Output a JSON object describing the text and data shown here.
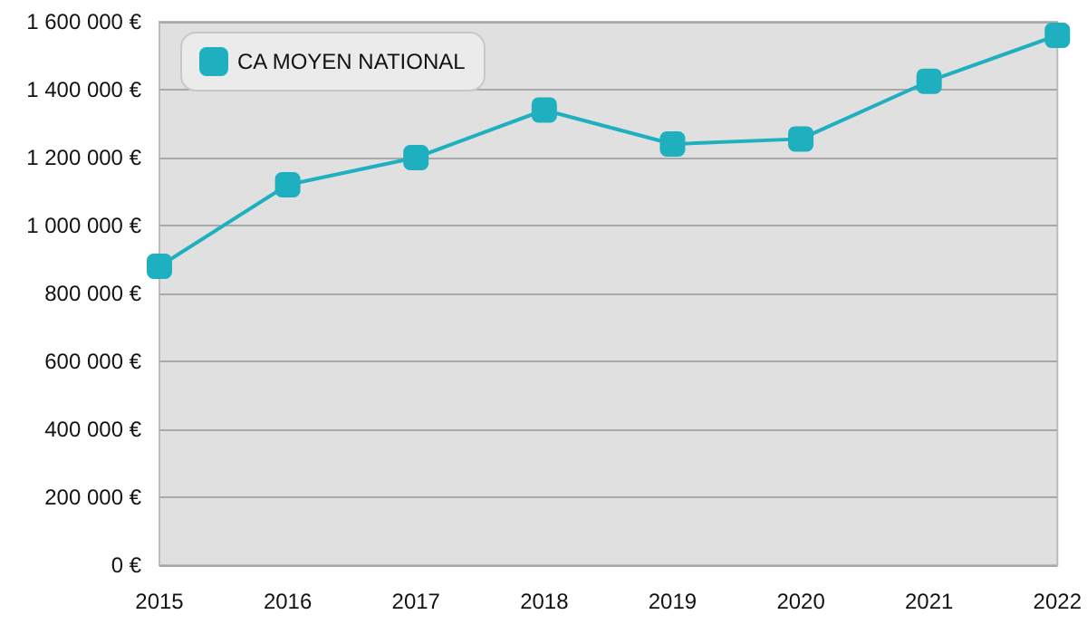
{
  "chart_data": {
    "type": "line",
    "categories": [
      "2015",
      "2016",
      "2017",
      "2018",
      "2019",
      "2020",
      "2021",
      "2022"
    ],
    "series": [
      {
        "name": "CA MOYEN NATIONAL",
        "color": "#1fb0c0",
        "values": [
          880000,
          1120000,
          1200000,
          1340000,
          1240000,
          1255000,
          1425000,
          1560000
        ]
      }
    ],
    "ylim": [
      0,
      1600000
    ],
    "yticks": [
      {
        "value": 0,
        "label": "0 €"
      },
      {
        "value": 200000,
        "label": "200 000 €"
      },
      {
        "value": 400000,
        "label": "400 000 €"
      },
      {
        "value": 600000,
        "label": "600 000 €"
      },
      {
        "value": 800000,
        "label": "800 000 €"
      },
      {
        "value": 1000000,
        "label": "1 000 000 €"
      },
      {
        "value": 1200000,
        "label": "1 200 000 €"
      },
      {
        "value": 1400000,
        "label": "1 400 000 €"
      },
      {
        "value": 1600000,
        "label": "1 600 000 €"
      }
    ],
    "grid": "y",
    "legend": "top left",
    "marker": "square",
    "line_style": "solid"
  }
}
